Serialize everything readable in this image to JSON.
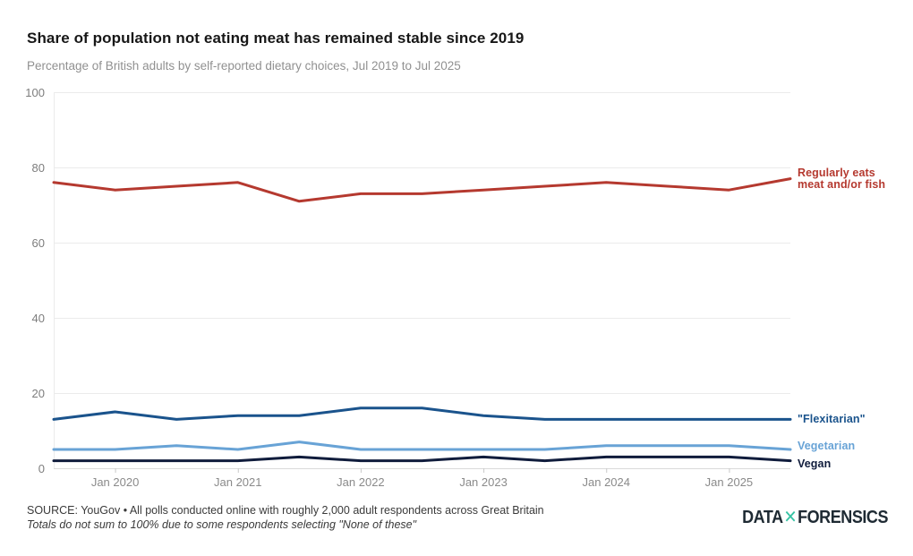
{
  "header": {
    "title": "Share of population not eating meat has remained stable since 2019",
    "subtitle": "Percentage of British adults by self-reported dietary choices, Jul 2019 to Jul 2025"
  },
  "chart_data": {
    "type": "line",
    "x": [
      "Jul 2019",
      "Jan 2020",
      "Jul 2020",
      "Jan 2021",
      "Jul 2021",
      "Jan 2022",
      "Jul 2022",
      "Jan 2023",
      "Jul 2023",
      "Jan 2024",
      "Jul 2024",
      "Jan 2025",
      "Jul 2025"
    ],
    "x_tick_labels": [
      "Jan 2020",
      "Jan 2021",
      "Jan 2022",
      "Jan 2023",
      "Jan 2024",
      "Jan 2025"
    ],
    "y_ticks": [
      0,
      20,
      40,
      60,
      80,
      100
    ],
    "ylim": [
      0,
      100
    ],
    "grid": "horizontal",
    "legend_position": "right-of-line-end",
    "series": [
      {
        "name": "Regularly eats meat and/or fish",
        "label_lines": [
          "Regularly eats",
          "meat and/or fish"
        ],
        "color": "#b5392f",
        "values": [
          76,
          74,
          75,
          76,
          71,
          73,
          73,
          74,
          75,
          76,
          75,
          74,
          77
        ]
      },
      {
        "name": "\"Flexitarian\"",
        "label_lines": [
          "\"Flexitarian\""
        ],
        "color": "#1a538c",
        "values": [
          13,
          15,
          13,
          14,
          14,
          16,
          16,
          14,
          13,
          13,
          13,
          13,
          13
        ]
      },
      {
        "name": "Vegetarian",
        "label_lines": [
          "Vegetarian"
        ],
        "color": "#68a3d6",
        "values": [
          5,
          5,
          6,
          5,
          7,
          5,
          5,
          5,
          5,
          6,
          6,
          6,
          5
        ]
      },
      {
        "name": "Vegan",
        "label_lines": [
          "Vegan"
        ],
        "color": "#101c3c",
        "values": [
          2,
          2,
          2,
          2,
          3,
          2,
          2,
          3,
          2,
          3,
          3,
          3,
          2
        ]
      }
    ]
  },
  "footer": {
    "source": "SOURCE: YouGov • All polls conducted online with roughly 2,000 adult respondents across Great Britain",
    "note": "Totals do not sum to 100% due to some respondents selecting \"None of these\"",
    "logo": {
      "part1": "DATA",
      "x": "✕",
      "part2": "FORENSICS",
      "accent_color": "#36c3a4",
      "text_color": "#1e2a33"
    }
  }
}
